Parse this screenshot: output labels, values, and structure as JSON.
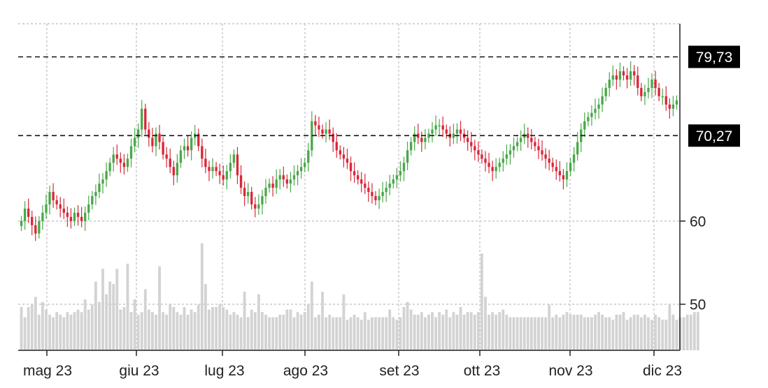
{
  "chart_data": {
    "type": "candlestick",
    "x_tick_labels": [
      "mag 23",
      "giu 23",
      "lug 23",
      "ago 23",
      "set 23",
      "ott 23",
      "nov 23",
      "dic 23"
    ],
    "y_tick_labels": [
      "50",
      "60"
    ],
    "y_ticks": [
      50,
      60
    ],
    "ylim": [
      44.5,
      84.0
    ],
    "reference_lines": [
      {
        "value": 79.73,
        "label": "79,73"
      },
      {
        "value": 70.27,
        "label": "70,27"
      }
    ],
    "colors": {
      "up": "#4aa84a",
      "down": "#d8283a",
      "volume": "#d3d3d3",
      "grid": "#c8c8c8",
      "axis": "#222222"
    },
    "series": [
      {
        "values": [
          60.0,
          61.5,
          60.5,
          59.5,
          58.5,
          60.0,
          61.0,
          62.0,
          63.5,
          62.5,
          62.0,
          61.5,
          61.0,
          60.5,
          60.0,
          61.0,
          60.5,
          60.0,
          61.0,
          62.0,
          63.0,
          63.5,
          64.5,
          65.0,
          66.0,
          67.0,
          68.0,
          67.5,
          67.0,
          66.5,
          67.5,
          69.0,
          70.0,
          71.0,
          73.5,
          71.0,
          70.0,
          69.0,
          70.5,
          69.5,
          68.0,
          67.5,
          66.5,
          65.5,
          67.0,
          68.5,
          69.0,
          68.5,
          70.0,
          70.5,
          69.0,
          67.5,
          66.5,
          66.0,
          66.5,
          66.0,
          65.5,
          65.0,
          66.0,
          67.0,
          68.0,
          65.5,
          64.0,
          63.0,
          63.5,
          62.0,
          61.5,
          62.0,
          63.0,
          64.0,
          64.5,
          64.0,
          65.0,
          65.5,
          65.0,
          64.5,
          65.0,
          65.5,
          66.0,
          66.5,
          67.0,
          68.5,
          72.0,
          71.5,
          71.0,
          70.5,
          71.0,
          70.5,
          69.5,
          68.5,
          68.0,
          67.5,
          67.0,
          66.0,
          65.5,
          65.0,
          64.5,
          64.0,
          63.5,
          63.0,
          62.5,
          63.0,
          63.5,
          64.0,
          64.5,
          65.0,
          65.5,
          66.0,
          67.0,
          68.5,
          69.5,
          70.5,
          70.0,
          69.5,
          70.0,
          70.5,
          71.0,
          71.5,
          71.5,
          71.0,
          70.5,
          70.0,
          70.5,
          71.0,
          70.5,
          70.0,
          69.5,
          69.0,
          68.5,
          68.0,
          67.5,
          67.0,
          66.5,
          66.0,
          66.5,
          67.0,
          67.5,
          68.0,
          68.5,
          69.0,
          69.5,
          70.0,
          70.5,
          70.0,
          69.5,
          69.0,
          68.5,
          68.0,
          67.5,
          67.0,
          66.5,
          66.0,
          65.5,
          65.0,
          66.0,
          67.0,
          68.0,
          69.5,
          71.0,
          72.0,
          72.5,
          73.0,
          73.5,
          74.0,
          75.0,
          76.0,
          77.0,
          77.5,
          77.0,
          78.0,
          77.5,
          77.0,
          78.0,
          77.5,
          76.0,
          75.0,
          75.5,
          76.0,
          77.0,
          76.0,
          75.0,
          75.0,
          74.0,
          73.5,
          74.0,
          74.5
        ]
      }
    ],
    "volume": [
      8.5,
      6.5,
      8.5,
      9.0,
      10.5,
      7.0,
      9.5,
      8.0,
      7.0,
      6.5,
      7.5,
      7.0,
      6.5,
      7.5,
      7.0,
      7.5,
      8.0,
      7.5,
      10.0,
      8.0,
      9.0,
      13.5,
      9.5,
      16.0,
      11.0,
      13.5,
      13.0,
      16.0,
      8.0,
      8.5,
      17.0,
      7.5,
      10.0,
      7.0,
      7.5,
      12.0,
      8.0,
      7.5,
      7.0,
      16.5,
      7.5,
      7.0,
      9.0,
      8.5,
      7.5,
      7.0,
      8.5,
      7.0,
      8.0,
      7.5,
      9.0,
      21.0,
      13.0,
      8.0,
      8.5,
      8.5,
      9.0,
      8.5,
      8.0,
      7.0,
      7.5,
      7.0,
      6.5,
      11.5,
      6.5,
      8.0,
      7.5,
      11.0,
      7.5,
      7.0,
      6.5,
      6.5,
      6.5,
      7.0,
      7.0,
      8.0,
      8.0,
      6.5,
      7.5,
      7.0,
      7.5,
      9.0,
      13.5,
      6.5,
      7.0,
      11.5,
      6.5,
      7.0,
      6.5,
      6.5,
      6.5,
      11.0,
      6.0,
      6.5,
      7.0,
      6.5,
      6.0,
      7.5,
      6.0,
      6.5,
      6.5,
      6.5,
      6.5,
      6.5,
      8.0,
      6.5,
      6.0,
      6.5,
      8.5,
      9.5,
      8.0,
      7.0,
      7.0,
      7.5,
      6.5,
      7.0,
      7.5,
      6.5,
      7.5,
      7.0,
      8.0,
      6.5,
      7.5,
      7.0,
      8.5,
      7.0,
      7.5,
      7.5,
      7.0,
      7.5,
      19.0,
      10.5,
      7.0,
      7.5,
      7.0,
      7.5,
      8.0,
      7.0,
      6.5,
      6.5,
      6.5,
      6.5,
      6.5,
      6.5,
      6.5,
      6.5,
      6.5,
      6.5,
      6.5,
      9.0,
      6.5,
      7.0,
      6.5,
      7.0,
      7.5,
      7.0,
      7.0,
      7.0,
      7.0,
      6.5,
      6.5,
      6.5,
      7.0,
      7.5,
      7.0,
      6.5,
      6.5,
      6.0,
      7.0,
      7.0,
      7.5,
      6.0,
      6.5,
      7.0,
      7.0,
      6.5,
      7.0,
      6.5,
      6.0,
      7.0,
      6.5,
      6.0,
      6.0,
      9.0,
      7.0,
      6.0,
      6.5,
      6.5,
      7.0,
      7.0,
      7.5,
      7.5
    ]
  }
}
